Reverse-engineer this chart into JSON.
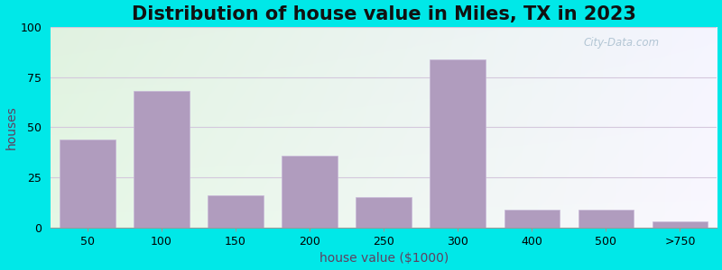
{
  "title": "Distribution of house value in Miles, TX in 2023",
  "xlabel": "house value ($1000)",
  "ylabel": "houses",
  "categories": [
    "50",
    "100",
    "150",
    "200",
    "250",
    "300",
    "400",
    "500",
    ">750"
  ],
  "values": [
    44,
    68,
    16,
    36,
    15,
    84,
    9,
    9,
    3
  ],
  "bar_color": "#b09cbe",
  "bar_edge_color": "#c8b8d8",
  "ylim": [
    0,
    100
  ],
  "yticks": [
    0,
    25,
    50,
    75,
    100
  ],
  "background_outer": "#00e8e8",
  "grid_color": "#d4c8dc",
  "title_fontsize": 15,
  "axis_label_fontsize": 10,
  "tick_fontsize": 9,
  "watermark_text": "City-Data.com"
}
